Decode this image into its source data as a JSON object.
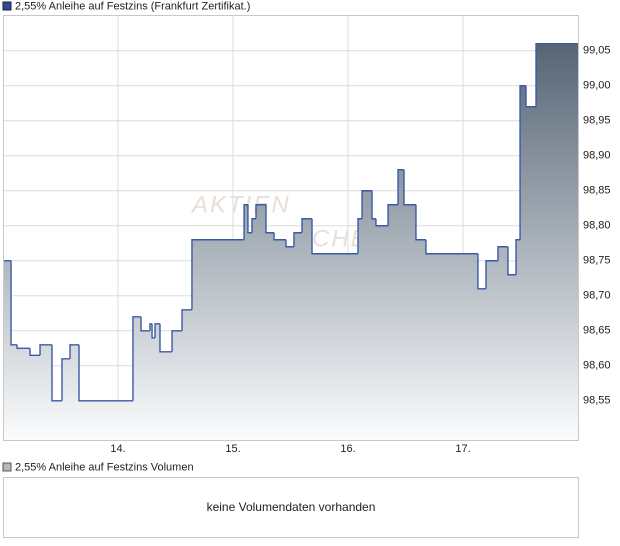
{
  "chart_data": {
    "type": "step-area",
    "title": "2,55% Anleihe auf Festzins (Frankfurt Zertifikat.)",
    "watermark": [
      "AKTIEN",
      "CHECK"
    ],
    "line_color": "#3b5aa6",
    "fill_top_color": "#4a5a6b",
    "fill_bottom_color": "#fbfcfd",
    "grid": true,
    "xlim": [
      13,
      18
    ],
    "xticks": [
      {
        "value": 14,
        "label": "14."
      },
      {
        "value": 15,
        "label": "15."
      },
      {
        "value": 16,
        "label": "16."
      },
      {
        "value": 17,
        "label": "17."
      }
    ],
    "ylim": [
      98.494,
      99.101
    ],
    "yticks": [
      {
        "value": 98.55,
        "label": "98,55"
      },
      {
        "value": 98.6,
        "label": "98,60"
      },
      {
        "value": 98.65,
        "label": "98,65"
      },
      {
        "value": 98.7,
        "label": "98,70"
      },
      {
        "value": 98.75,
        "label": "98,75"
      },
      {
        "value": 98.8,
        "label": "98,80"
      },
      {
        "value": 98.85,
        "label": "98,85"
      },
      {
        "value": 98.9,
        "label": "98,90"
      },
      {
        "value": 98.95,
        "label": "98,95"
      },
      {
        "value": 99.0,
        "label": "99,00"
      },
      {
        "value": 99.05,
        "label": "99,05"
      }
    ],
    "x": [
      13.0,
      13.07,
      13.122,
      13.235,
      13.322,
      13.426,
      13.513,
      13.583,
      13.661,
      14.13,
      14.2,
      14.278,
      14.296,
      14.322,
      14.365,
      14.47,
      14.557,
      14.643,
      15.096,
      15.13,
      15.165,
      15.2,
      15.287,
      15.357,
      15.461,
      15.53,
      15.6,
      15.687,
      16.087,
      16.122,
      16.209,
      16.243,
      16.348,
      16.435,
      16.487,
      16.591,
      16.678,
      17.13,
      17.2,
      17.304,
      17.391,
      17.461,
      17.496,
      17.548,
      17.635
    ],
    "values": [
      98.75,
      98.63,
      98.625,
      98.615,
      98.63,
      98.55,
      98.61,
      98.63,
      98.55,
      98.67,
      98.65,
      98.66,
      98.64,
      98.66,
      98.62,
      98.65,
      98.68,
      98.78,
      98.83,
      98.79,
      98.81,
      98.83,
      98.79,
      98.78,
      98.77,
      98.79,
      98.81,
      98.76,
      98.81,
      98.85,
      98.81,
      98.8,
      98.83,
      98.88,
      98.83,
      98.78,
      98.76,
      98.71,
      98.75,
      98.77,
      98.73,
      98.78,
      99.0,
      98.97,
      99.06
    ],
    "volume_title": "2,55% Anleihe auf Festzins Volumen",
    "volume_message": "keine Volumendaten vorhanden"
  }
}
